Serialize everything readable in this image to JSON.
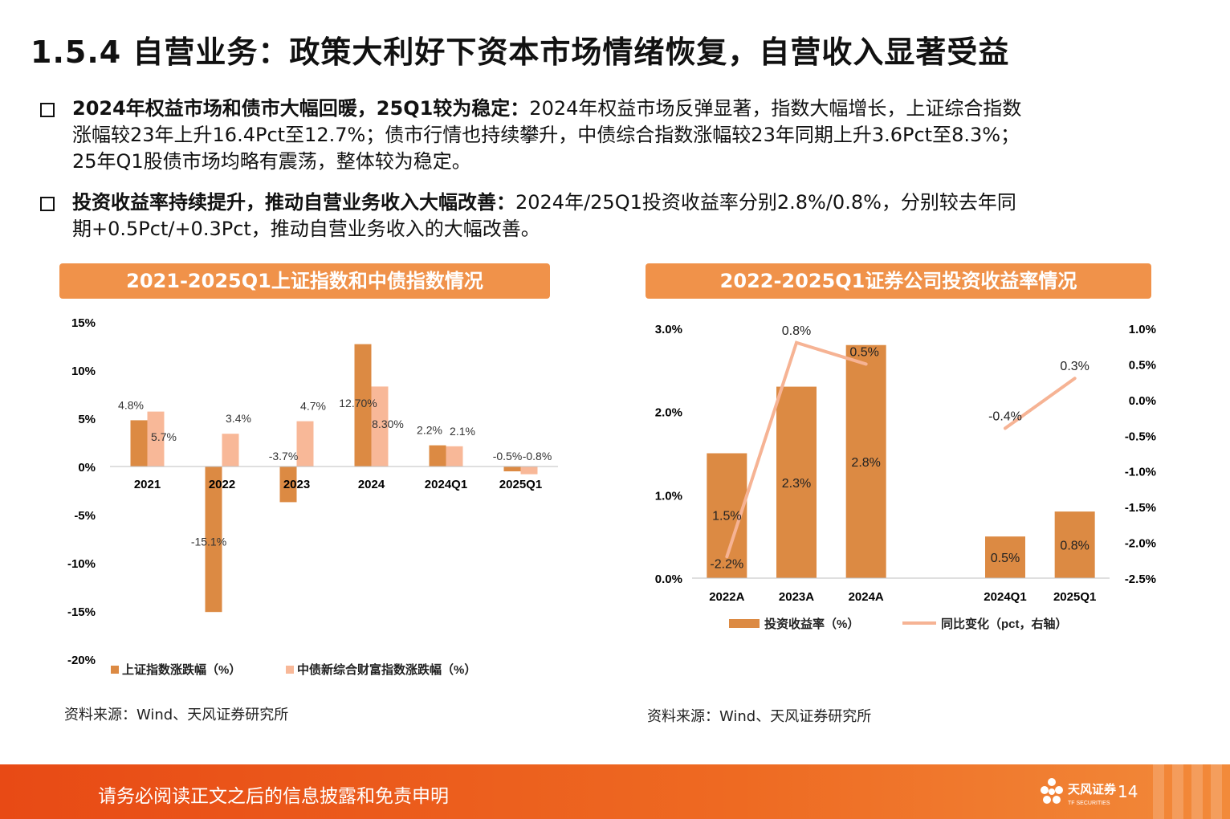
{
  "page": {
    "title": "1.5.4 自营业务：政策大利好下资本市场情绪恢复，自营收入显著受益",
    "bullets": [
      {
        "bold": "2024年权益市场和债市大幅回暖，25Q1较为稳定：",
        "line1": "2024年权益市场反弹显著，指数大幅增长，上证综合指数",
        "line2": "涨幅较23年上升16.4Pct至12.7%；债市行情也持续攀升，中债综合指数涨幅较23年同期上升3.6Pct至8.3%；",
        "line3": "25年Q1股债市场均略有震荡，整体较为稳定。"
      },
      {
        "bold": "投资收益率持续提升，推动自营业务收入大幅改善：",
        "line1": "2024年/25Q1投资收益率分别2.8%/0.8%，分别较去年同",
        "line2": "期+0.5Pct/+0.3Pct，推动自营业务收入的大幅改善。"
      }
    ],
    "source_left": "资料来源：Wind、天风证券研究所",
    "source_right": "资料来源：Wind、天风证券研究所",
    "footer_text": "请务必阅读正文之后的信息披露和免责申明",
    "footer_logo": "天风证券",
    "footer_logo_sub": "TF SECURITIES",
    "page_number": "14"
  },
  "chart_data": [
    {
      "type": "bar",
      "title": "2021-2025Q1上证指数和中债指数情况",
      "categories": [
        "2021",
        "2022",
        "2023",
        "2024",
        "2024Q1",
        "2025Q1"
      ],
      "series": [
        {
          "name": "上证指数涨跌幅（%）",
          "values": [
            4.8,
            -15.1,
            -3.7,
            12.7,
            2.2,
            -0.5
          ],
          "labels": [
            "4.8%",
            "-15.1%",
            "-3.7%",
            "12.70%",
            "2.2%",
            "-0.5%"
          ],
          "color": "#dc8a43"
        },
        {
          "name": "中债新综合财富指数涨跌幅（%）",
          "values": [
            5.7,
            3.4,
            4.7,
            8.3,
            2.1,
            -0.8
          ],
          "labels": [
            "5.7%",
            "3.4%",
            "4.7%",
            "8.30%",
            "2.1%",
            "-0.8%"
          ],
          "color": "#f8b898"
        }
      ],
      "ylim": [
        -20,
        15
      ],
      "yticks": [
        "15%",
        "10%",
        "5%",
        "0%",
        "-5%",
        "-10%",
        "-15%",
        "-20%"
      ],
      "legend": "bottom"
    },
    {
      "type": "bar+line",
      "title": "2022-2025Q1证券公司投资收益率情况",
      "categories": [
        "2022A",
        "2023A",
        "2024A",
        "",
        "2024Q1",
        "2025Q1"
      ],
      "bar_series": {
        "name": "投资收益率（%）",
        "values": [
          1.5,
          2.3,
          2.8,
          null,
          0.5,
          0.8
        ],
        "labels": [
          "1.5%",
          "2.3%",
          "2.8%",
          "",
          "0.5%",
          "0.8%"
        ],
        "color": "#dc8a43"
      },
      "line_series": {
        "name": "同比变化（pct，右轴）",
        "values": [
          -2.2,
          0.8,
          0.5,
          null,
          -0.4,
          0.3
        ],
        "labels": [
          "-2.2%",
          "0.8%",
          "0.5%",
          "",
          "-0.4%",
          "0.3%"
        ],
        "color": "#f6b394"
      },
      "ylim_left": [
        0,
        3
      ],
      "yticks_left": [
        "3.0%",
        "2.0%",
        "1.0%",
        "0.0%"
      ],
      "ylim_right": [
        -2.5,
        1.0
      ],
      "yticks_right": [
        "1.0%",
        "0.5%",
        "0.0%",
        "-0.5%",
        "-1.0%",
        "-1.5%",
        "-2.0%",
        "-2.5%"
      ],
      "legend": "bottom"
    }
  ]
}
